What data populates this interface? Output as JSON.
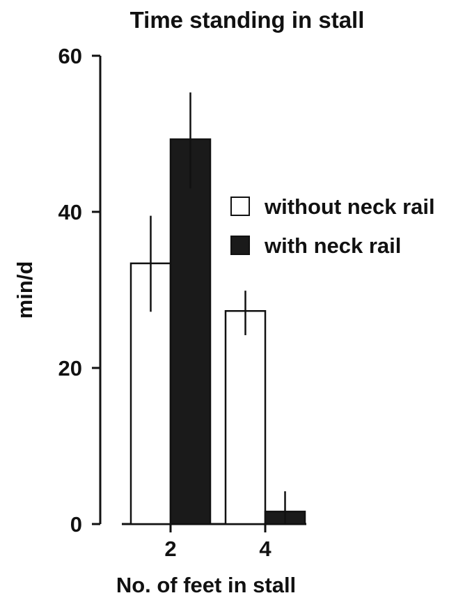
{
  "chart_data": {
    "type": "bar",
    "title": "Time standing in stall",
    "xlabel": "No. of feet in stall",
    "ylabel": "min/d",
    "categories": [
      "2",
      "4"
    ],
    "ylim": [
      0,
      60
    ],
    "yticks": [
      0,
      20,
      40,
      60
    ],
    "ytick_labels": [
      "0",
      "20",
      "40",
      "60"
    ],
    "series": [
      {
        "name": "without neck rail",
        "color": "#ffffff",
        "values": [
          33.4,
          27.3
        ],
        "error_low": [
          27.2,
          24.2
        ],
        "error_high": [
          39.5,
          29.9
        ]
      },
      {
        "name": "with neck rail",
        "color": "#1a1a1a",
        "values": [
          49.3,
          1.6
        ],
        "error_low": [
          43.0,
          0.0
        ],
        "error_high": [
          55.3,
          4.2
        ]
      }
    ],
    "legend_position": "right",
    "grid": false
  }
}
